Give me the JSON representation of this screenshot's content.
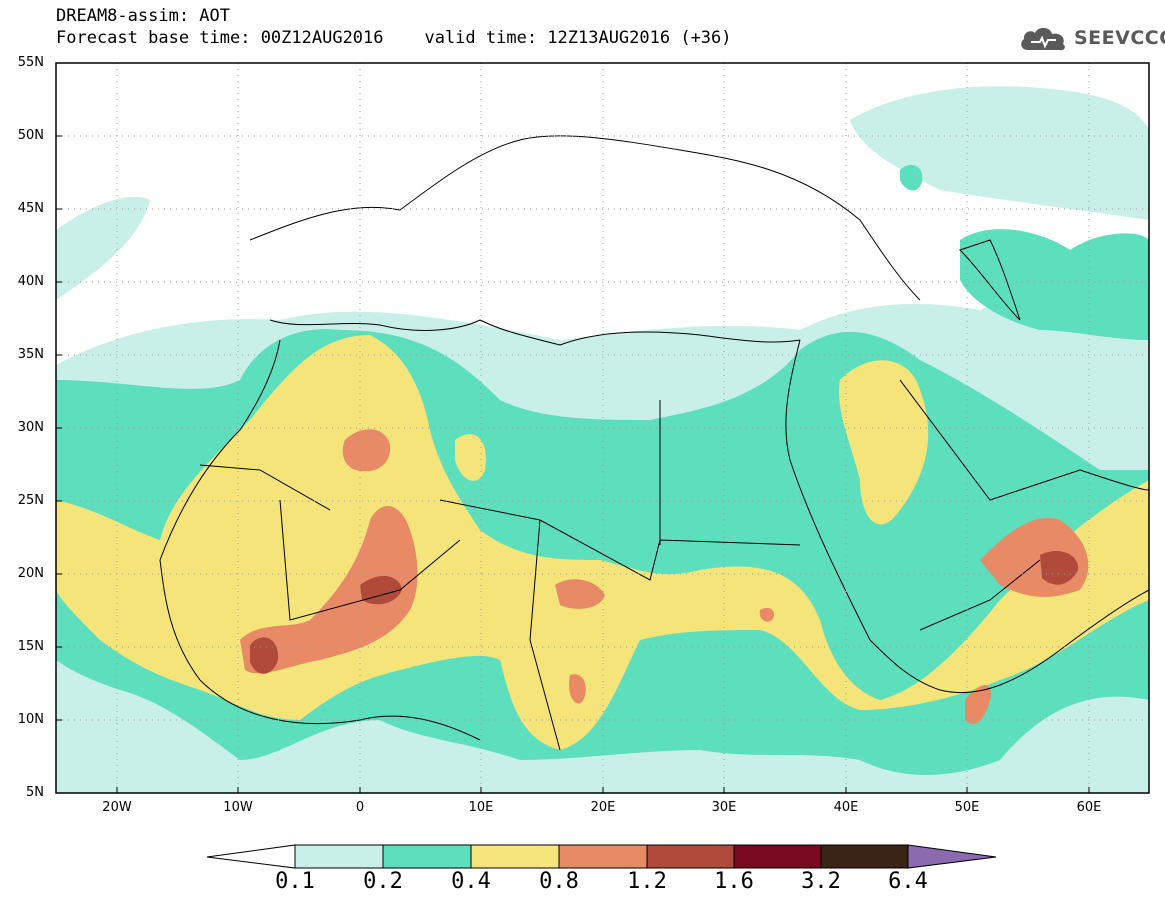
{
  "header": {
    "title_line1": "DREAM8-assim: AOT",
    "base_time_label": "Forecast base time: 00Z12AUG2016",
    "valid_time_label": "valid time: 12Z13AUG2016 (+36)",
    "logo_text": "SEEVCCC"
  },
  "map": {
    "lat_labels": [
      "55N",
      "50N",
      "45N",
      "40N",
      "35N",
      "30N",
      "25N",
      "20N",
      "15N",
      "10N",
      "5N"
    ],
    "lon_labels": [
      "20W",
      "10W",
      "0",
      "10E",
      "20E",
      "30E",
      "40E",
      "50E",
      "60E"
    ],
    "extent": {
      "lon_min": -25,
      "lon_max": 65,
      "lat_min": 5,
      "lat_max": 55
    }
  },
  "colorbar": {
    "labels": [
      "0.1",
      "0.2",
      "0.4",
      "0.8",
      "1.2",
      "1.6",
      "3.2",
      "6.4"
    ],
    "colors": [
      "#ffffff",
      "#c8efe8",
      "#5ddfbd",
      "#f4e47a",
      "#e88a66",
      "#b04a3a",
      "#7a0a22",
      "#3a2416",
      "#8b6aaf"
    ]
  },
  "colors": {
    "level_0_1": "#c8efe8",
    "level_0_2": "#5ddfbd",
    "level_0_4": "#f4e47a",
    "level_0_8": "#e88a66",
    "level_1_2": "#b04a3a",
    "level_1_6": "#7a0a22",
    "level_3_2": "#3a2416",
    "level_6_4": "#8b6aaf"
  }
}
